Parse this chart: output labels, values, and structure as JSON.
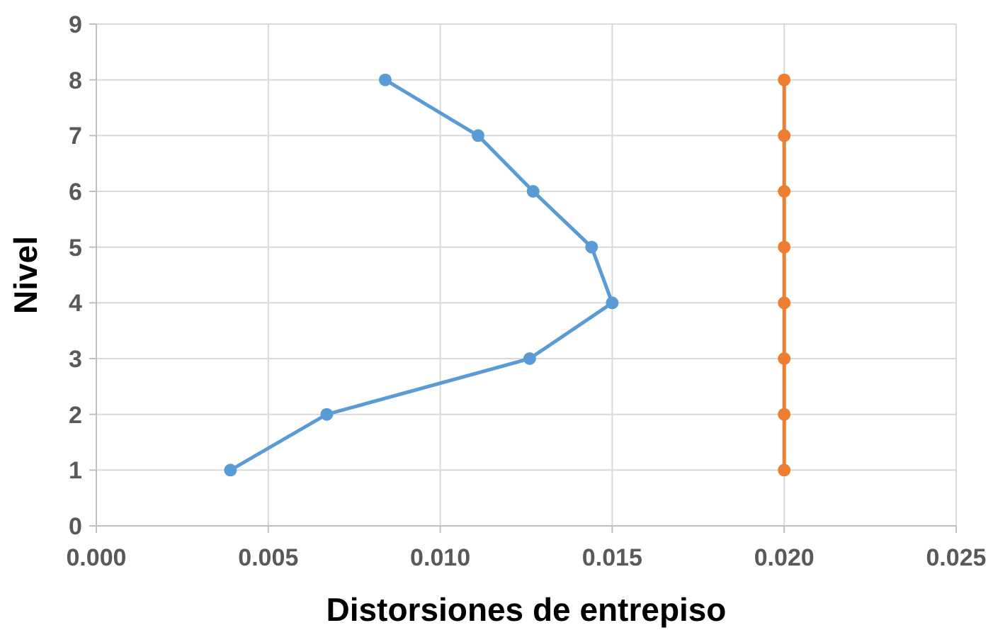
{
  "chart_data": {
    "type": "line",
    "xlabel": "Distorsiones de entrepiso",
    "ylabel": "Nivel",
    "xlim": [
      0,
      0.025
    ],
    "xticks": [
      {
        "value": 0,
        "label": "0.000"
      },
      {
        "value": 0.005,
        "label": "0.005"
      },
      {
        "value": 0.01,
        "label": "0.010"
      },
      {
        "value": 0.015,
        "label": "0.015"
      },
      {
        "value": 0.02,
        "label": "0.020"
      },
      {
        "value": 0.025,
        "label": "0.025"
      }
    ],
    "ylim": [
      0,
      9
    ],
    "yticks": [
      0,
      1,
      2,
      3,
      4,
      5,
      6,
      7,
      8,
      9
    ],
    "grid": true,
    "marker": "circle",
    "line_style": "solid",
    "series": [
      {
        "color": "#5b9bd5",
        "x": [
          0.0039,
          0.0067,
          0.0126,
          0.015,
          0.0144,
          0.0127,
          0.0111,
          0.0084
        ],
        "values": [
          1,
          2,
          3,
          4,
          5,
          6,
          7,
          8
        ]
      },
      {
        "color": "#ed7d31",
        "x": [
          0.02,
          0.02,
          0.02,
          0.02,
          0.02,
          0.02,
          0.02,
          0.02
        ],
        "values": [
          1,
          2,
          3,
          4,
          5,
          6,
          7,
          8
        ]
      }
    ]
  }
}
